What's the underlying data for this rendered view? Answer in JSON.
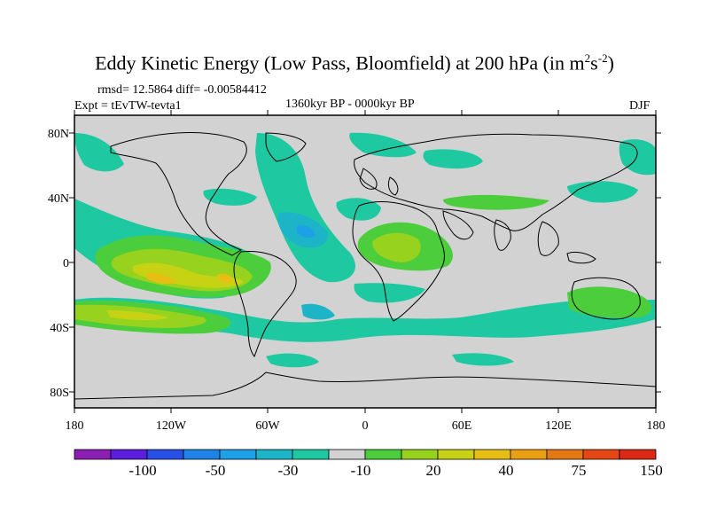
{
  "title": {
    "main": "Eddy Kinetic Energy (Low Pass, Bloomfield) at 200 hPa (in m",
    "sup1": "2",
    "mid": "s",
    "sup2": "-2",
    "end": ")"
  },
  "stats": "rmsd= 12.5864 diff= -0.00584412",
  "experiment": "Expt = tEvTW-tevta1",
  "period": "1360kyr BP - 0000kyr BP",
  "season": "DJF",
  "map": {
    "lat_ticks": [
      "80N",
      "40N",
      "0",
      "40S",
      "80S"
    ],
    "lon_ticks": [
      "180",
      "120W",
      "60W",
      "0",
      "60E",
      "120E",
      "180"
    ],
    "background_color": "#d2d2d2"
  },
  "colorbar": {
    "colors": [
      "#8c1eb4",
      "#5a1edc",
      "#2850e6",
      "#1e82e6",
      "#1ea0e6",
      "#1eb4c8",
      "#1ec8a0",
      "#d2d2d2",
      "#4ccd3c",
      "#96d21e",
      "#c8d214",
      "#e6be14",
      "#eba014",
      "#e67814",
      "#e64614",
      "#dc2814"
    ],
    "labels": [
      "-100",
      "-50",
      "-30",
      "-10",
      "20",
      "40",
      "75",
      "150"
    ]
  }
}
